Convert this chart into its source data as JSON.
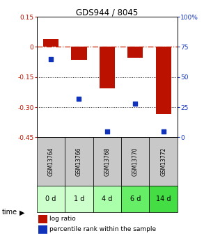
{
  "title": "GDS944 / 8045",
  "samples": [
    "GSM13764",
    "GSM13766",
    "GSM13768",
    "GSM13770",
    "GSM13772"
  ],
  "time_labels": [
    "0 d",
    "1 d",
    "4 d",
    "6 d",
    "14 d"
  ],
  "log_ratios": [
    0.04,
    -0.065,
    -0.205,
    -0.052,
    -0.335
  ],
  "percentile_ranks": [
    65,
    32,
    5,
    28,
    5
  ],
  "ylim_left": [
    -0.45,
    0.15
  ],
  "ylim_right": [
    0,
    100
  ],
  "yticks_left": [
    0.15,
    0.0,
    -0.15,
    -0.3,
    -0.45
  ],
  "ytick_labels_left": [
    "0.15",
    "0",
    "-0.15",
    "-0.30",
    "-0.45"
  ],
  "yticks_right": [
    100,
    75,
    50,
    25,
    0
  ],
  "ytick_labels_right": [
    "100%",
    "75",
    "50",
    "25",
    "0"
  ],
  "bar_color": "#bb1100",
  "dot_color": "#1133bb",
  "zero_line_color": "#cc2200",
  "grid_color": "#222222",
  "sample_bg_color": "#c8c8c8",
  "time_bg_colors": [
    "#ccffcc",
    "#ccffcc",
    "#aaffaa",
    "#66ee66",
    "#44dd44"
  ],
  "bar_width": 0.55,
  "legend_log_ratio": "log ratio",
  "legend_percentile": "percentile rank within the sample",
  "figsize": [
    2.93,
    3.45
  ],
  "dpi": 100
}
